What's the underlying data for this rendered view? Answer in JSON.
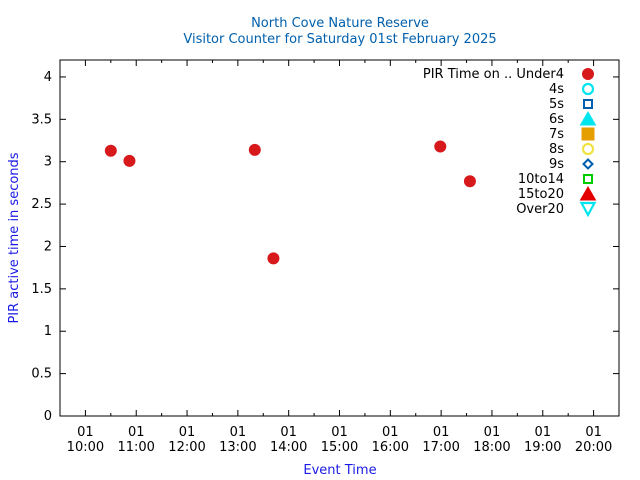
{
  "chart_data": {
    "type": "scatter",
    "title": "North Cove Nature Reserve",
    "subtitle": "Visitor Counter for Saturday 01st February 2025",
    "xlabel": "Event Time",
    "ylabel": "PIR active time in seconds",
    "xlim": [
      "09:30",
      "20:30"
    ],
    "ylim": [
      0,
      4.2
    ],
    "x_ticks": [
      {
        "top": "01",
        "bottom": "10:00",
        "time": "10:00"
      },
      {
        "top": "01",
        "bottom": "11:00",
        "time": "11:00"
      },
      {
        "top": "01",
        "bottom": "12:00",
        "time": "12:00"
      },
      {
        "top": "01",
        "bottom": "13:00",
        "time": "13:00"
      },
      {
        "top": "01",
        "bottom": "14:00",
        "time": "14:00"
      },
      {
        "top": "01",
        "bottom": "15:00",
        "time": "15:00"
      },
      {
        "top": "01",
        "bottom": "16:00",
        "time": "16:00"
      },
      {
        "top": "01",
        "bottom": "17:00",
        "time": "17:00"
      },
      {
        "top": "01",
        "bottom": "18:00",
        "time": "18:00"
      },
      {
        "top": "01",
        "bottom": "19:00",
        "time": "19:00"
      },
      {
        "top": "01",
        "bottom": "20:00",
        "time": "20:00"
      }
    ],
    "y_ticks": [
      {
        "value": 0,
        "label": "0"
      },
      {
        "value": 0.5,
        "label": "0.5"
      },
      {
        "value": 1,
        "label": "1"
      },
      {
        "value": 1.5,
        "label": "1.5"
      },
      {
        "value": 2,
        "label": "2"
      },
      {
        "value": 2.5,
        "label": "2.5"
      },
      {
        "value": 3,
        "label": "3"
      },
      {
        "value": 3.5,
        "label": "3.5"
      },
      {
        "value": 4,
        "label": "4"
      }
    ],
    "legend_title": "PIR Time on ..",
    "legend_position": "top-right",
    "grid": false,
    "series": [
      {
        "name": "Under4",
        "marker": "circle-filled",
        "color": "#d7191c",
        "points": [
          {
            "x": "10:30",
            "y": 3.13
          },
          {
            "x": "10:52",
            "y": 3.01
          },
          {
            "x": "13:20",
            "y": 3.14
          },
          {
            "x": "13:42",
            "y": 1.86
          },
          {
            "x": "16:59",
            "y": 3.18
          },
          {
            "x": "17:34",
            "y": 2.77
          }
        ]
      },
      {
        "name": "4s",
        "marker": "circle-open",
        "color": "#00e5ee",
        "points": []
      },
      {
        "name": "5s",
        "marker": "square-open",
        "color": "#0060ad",
        "points": []
      },
      {
        "name": "6s",
        "marker": "triangle-filled",
        "color": "#00e5ee",
        "points": []
      },
      {
        "name": "7s",
        "marker": "square-filled",
        "color": "#e69f00",
        "points": []
      },
      {
        "name": "8s",
        "marker": "circle-open",
        "color": "#f0e442",
        "points": []
      },
      {
        "name": "9s",
        "marker": "diamond-open",
        "color": "#0060ad",
        "points": []
      },
      {
        "name": "10to14",
        "marker": "square-open",
        "color": "#00cc00",
        "points": []
      },
      {
        "name": "15to20",
        "marker": "triangle-filled",
        "color": "#e50000",
        "points": []
      },
      {
        "name": "Over20",
        "marker": "triangle-down-open",
        "color": "#00e5ee",
        "points": []
      }
    ]
  }
}
